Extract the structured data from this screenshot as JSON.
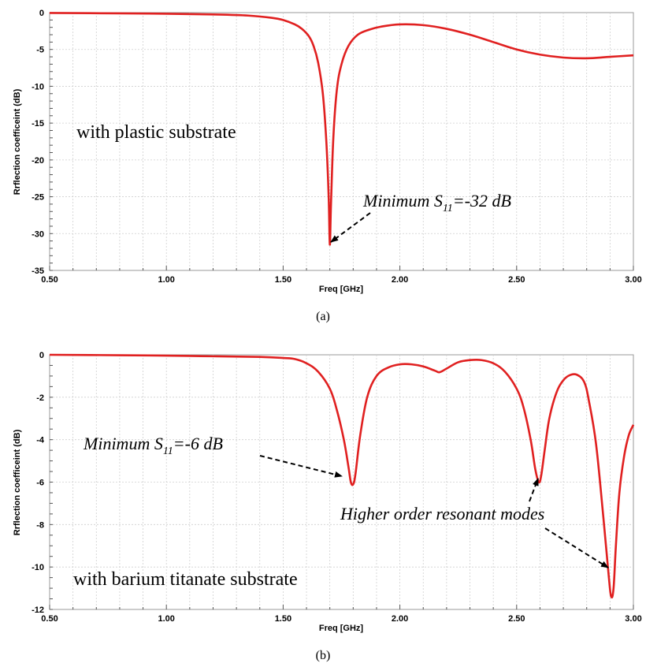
{
  "chart_data": [
    {
      "type": "line",
      "panel": "a",
      "caption": "(a)",
      "xlabel": "Freq [GHz]",
      "ylabel": "Rrflection coefficeint (dB)",
      "xlim": [
        0.5,
        3.0
      ],
      "ylim": [
        -35,
        0
      ],
      "xticks": [
        "0.50",
        "1.00",
        "1.50",
        "2.00",
        "2.50",
        "3.00"
      ],
      "yticks": [
        "0",
        "-5",
        "-10",
        "-15",
        "-20",
        "-25",
        "-30",
        "-35"
      ],
      "grid": true,
      "color": "#e02020",
      "x": [
        0.5,
        0.8,
        1.0,
        1.2,
        1.35,
        1.45,
        1.5,
        1.55,
        1.58,
        1.61,
        1.63,
        1.65,
        1.67,
        1.685,
        1.695,
        1.7,
        1.705,
        1.715,
        1.73,
        1.75,
        1.78,
        1.82,
        1.87,
        1.92,
        2.0,
        2.1,
        2.2,
        2.3,
        2.4,
        2.5,
        2.6,
        2.7,
        2.8,
        2.9,
        3.0
      ],
      "y": [
        -0.05,
        -0.1,
        -0.15,
        -0.25,
        -0.4,
        -0.7,
        -1.0,
        -1.6,
        -2.2,
        -3.2,
        -4.5,
        -6.8,
        -11.0,
        -17.5,
        -25.0,
        -31.5,
        -26.0,
        -17.0,
        -10.5,
        -7.0,
        -4.5,
        -3.0,
        -2.3,
        -1.9,
        -1.6,
        -1.7,
        -2.2,
        -3.0,
        -4.0,
        -5.0,
        -5.7,
        -6.1,
        -6.2,
        -6.0,
        -5.8
      ],
      "annotations": [
        {
          "text": "with plastic substrate"
        },
        {
          "text_main": "Minimum S",
          "text_sub": "11",
          "text_tail": "=-32 dB",
          "points_to": [
            1.7,
            -31.5
          ]
        }
      ]
    },
    {
      "type": "line",
      "panel": "b",
      "caption": "(b)",
      "xlabel": "Freq [GHz]",
      "ylabel": "Rrflection coefficeint (dB)",
      "xlim": [
        0.5,
        3.0
      ],
      "ylim": [
        -12,
        0
      ],
      "xticks": [
        "0.50",
        "1.00",
        "1.50",
        "2.00",
        "2.50",
        "3.00"
      ],
      "yticks": [
        "0",
        "-2",
        "-4",
        "-6",
        "-8",
        "-10",
        "-12"
      ],
      "grid": true,
      "color": "#e02020",
      "x": [
        0.5,
        0.8,
        1.0,
        1.2,
        1.4,
        1.5,
        1.55,
        1.6,
        1.65,
        1.7,
        1.73,
        1.76,
        1.78,
        1.79,
        1.8,
        1.81,
        1.83,
        1.86,
        1.9,
        1.95,
        2.0,
        2.05,
        2.1,
        2.15,
        2.17,
        2.2,
        2.25,
        2.3,
        2.35,
        2.4,
        2.45,
        2.5,
        2.53,
        2.56,
        2.58,
        2.595,
        2.605,
        2.62,
        2.64,
        2.67,
        2.7,
        2.73,
        2.76,
        2.79,
        2.81,
        2.84,
        2.87,
        2.895,
        2.905,
        2.915,
        2.925,
        2.94,
        2.96,
        2.98,
        3.0
      ],
      "y": [
        0.0,
        -0.02,
        -0.04,
        -0.07,
        -0.1,
        -0.15,
        -0.2,
        -0.4,
        -0.8,
        -1.6,
        -2.6,
        -4.0,
        -5.3,
        -6.0,
        -6.1,
        -5.6,
        -3.8,
        -2.0,
        -1.0,
        -0.6,
        -0.45,
        -0.45,
        -0.55,
        -0.75,
        -0.82,
        -0.65,
        -0.35,
        -0.25,
        -0.25,
        -0.4,
        -0.8,
        -1.6,
        -2.5,
        -4.0,
        -5.4,
        -6.0,
        -5.7,
        -4.5,
        -3.0,
        -1.8,
        -1.2,
        -0.95,
        -0.95,
        -1.3,
        -2.2,
        -4.2,
        -7.5,
        -10.5,
        -11.4,
        -11.0,
        -9.0,
        -6.5,
        -4.8,
        -3.8,
        -3.3
      ],
      "annotations": [
        {
          "text": "with barium titanate substrate"
        },
        {
          "text_main": "Minimum S",
          "text_sub": "11",
          "text_tail": "=-6 dB",
          "points_to": [
            1.8,
            -6.1
          ]
        },
        {
          "text": "Higher order resonant modes",
          "points_to": [
            [
              2.6,
              -6.0
            ],
            [
              2.91,
              -11.4
            ]
          ]
        }
      ]
    }
  ]
}
